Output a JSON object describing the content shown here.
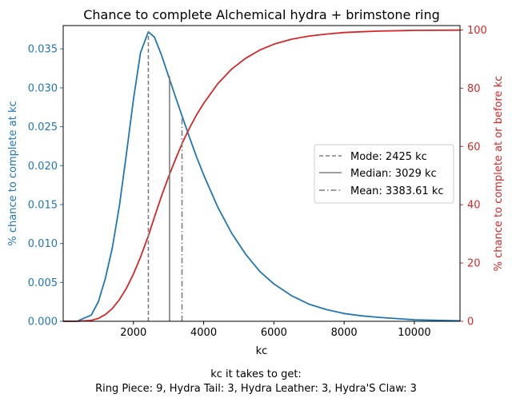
{
  "chart_data": {
    "type": "line",
    "title": "Chance to complete Alchemical hydra + brimstone ring",
    "xlabel": "kc",
    "ylabel_left": "% chance to complete at kc",
    "ylabel_right": "% chance to complete at or before kc",
    "xlim": [
      0,
      11300
    ],
    "ylim_left": [
      0,
      0.038
    ],
    "ylim_right": [
      0,
      101.5
    ],
    "x_ticks": [
      2000,
      4000,
      6000,
      8000,
      10000
    ],
    "y_left_ticks": [
      "0.000",
      "0.005",
      "0.010",
      "0.015",
      "0.020",
      "0.025",
      "0.030",
      "0.035"
    ],
    "y_right_ticks": [
      0,
      20,
      40,
      60,
      80,
      100
    ],
    "colors": {
      "left_axis": "#1f77b4",
      "right_axis": "#d62728",
      "markers": "#7f7f7f"
    },
    "series": [
      {
        "axis": "left",
        "color": "#1f77b4",
        "x": [
          0,
          400,
          800,
          1000,
          1200,
          1400,
          1600,
          1800,
          2000,
          2200,
          2425,
          2600,
          2800,
          3000,
          3200,
          3400,
          3600,
          3800,
          4000,
          4400,
          4800,
          5200,
          5600,
          6000,
          6500,
          7000,
          7500,
          8000,
          8500,
          9000,
          10000,
          11300
        ],
        "values": [
          0,
          2e-05,
          0.0008,
          0.0025,
          0.0055,
          0.0095,
          0.0148,
          0.0215,
          0.0285,
          0.0345,
          0.0372,
          0.0365,
          0.0342,
          0.0315,
          0.0288,
          0.0262,
          0.0236,
          0.0211,
          0.0188,
          0.0147,
          0.0113,
          0.0086,
          0.0064,
          0.0048,
          0.0033,
          0.0022,
          0.0015,
          0.001,
          0.0007,
          0.0005,
          0.0002,
          6e-05
        ]
      },
      {
        "axis": "right",
        "color": "#d62728",
        "x": [
          0,
          400,
          800,
          1000,
          1200,
          1400,
          1600,
          1800,
          2000,
          2200,
          2425,
          2600,
          2800,
          3000,
          3200,
          3400,
          3600,
          3800,
          4000,
          4400,
          4800,
          5200,
          5600,
          6000,
          6500,
          7000,
          7500,
          8000,
          8500,
          9000,
          10000,
          11300
        ],
        "values": [
          0,
          0.01,
          0.3,
          1.0,
          2.3,
          4.4,
          7.4,
          11.3,
          16.2,
          22.0,
          29.3,
          35.8,
          43.0,
          49.6,
          55.7,
          61.4,
          66.4,
          70.9,
          74.8,
          81.5,
          86.6,
          90.3,
          93.1,
          95.1,
          96.8,
          97.9,
          98.6,
          99.1,
          99.4,
          99.6,
          99.85,
          99.95
        ]
      }
    ],
    "markers": [
      {
        "label": "Mode: 2425 kc",
        "x": 2425,
        "style": "dashed",
        "y_top": 0.0372
      },
      {
        "label": "Median: 3029 kc",
        "x": 3029,
        "style": "solid",
        "y_top": 0.0315
      },
      {
        "label": "Mean: 3383.61 kc",
        "x": 3383.61,
        "style": "dashdot",
        "y_top": 0.0262
      }
    ],
    "legend_position": "center-right"
  },
  "caption": {
    "line1": "kc it takes to get:",
    "line2": "Ring Piece: 9,  Hydra Tail: 3,  Hydra Leather: 3,  Hydra'S Claw: 3"
  }
}
